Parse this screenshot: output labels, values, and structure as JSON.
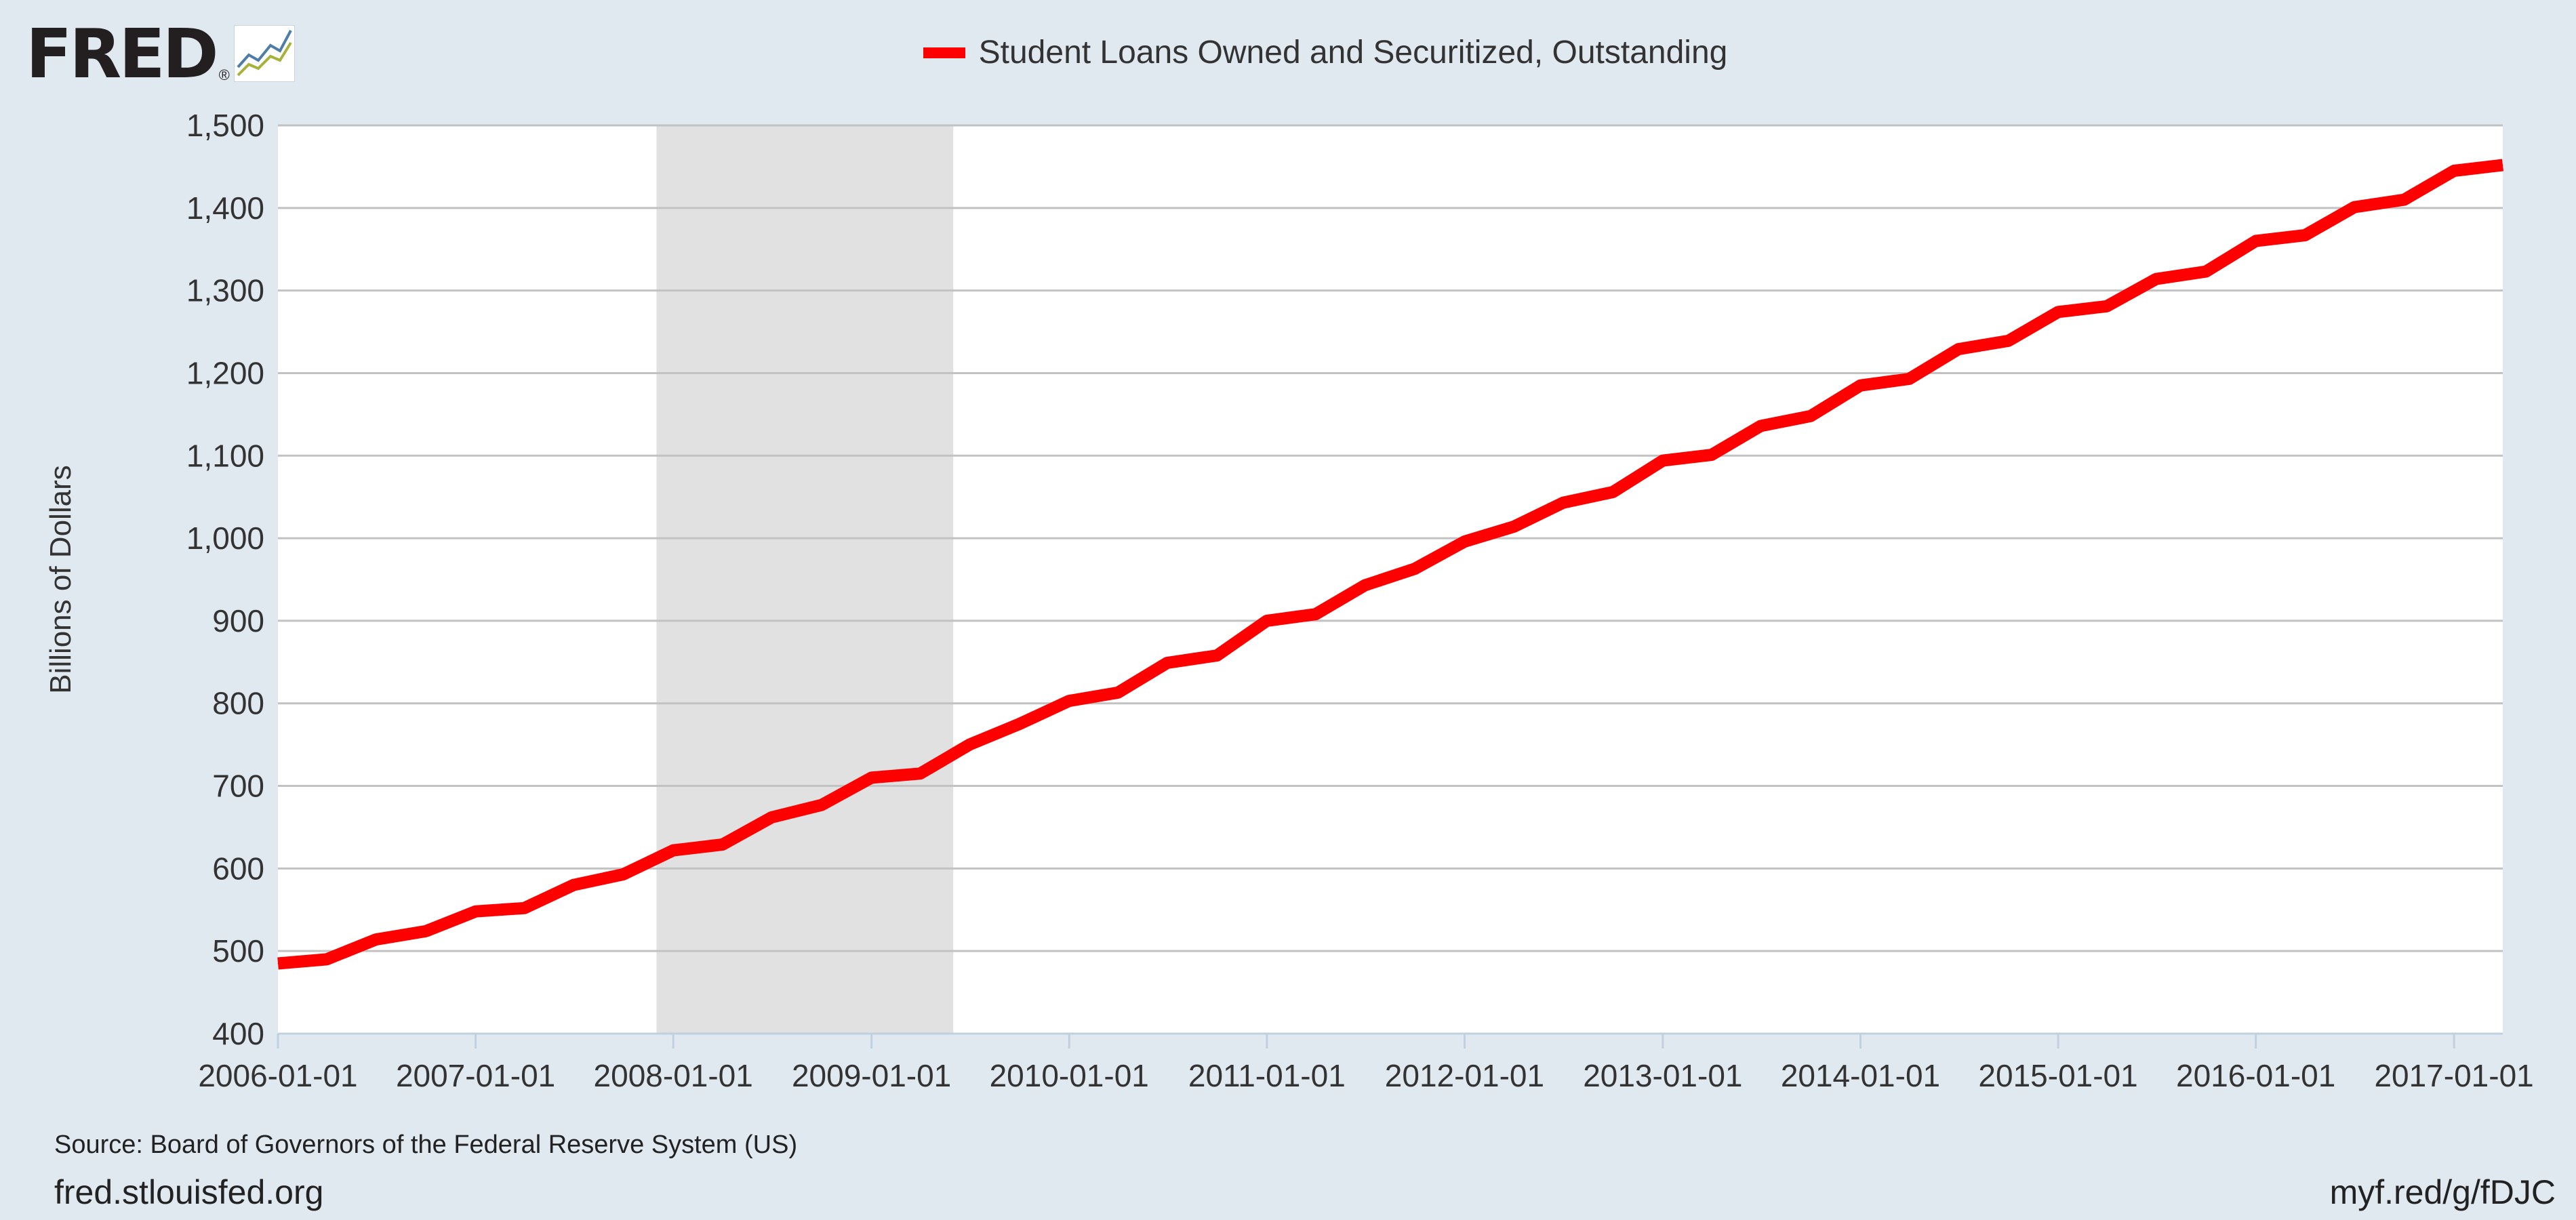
{
  "header": {
    "logo_text": "FRED",
    "logo_reg": "®",
    "legend_label": "Student Loans Owned and Securitized, Outstanding"
  },
  "footer": {
    "source": "Source: Board of Governors of the Federal Reserve System (US)",
    "site": "fred.stlouisfed.org",
    "shortlink": "myf.red/g/fDJC"
  },
  "colors": {
    "series": "#ff0000",
    "recession": "#e1e1e1",
    "background": "#e1e9f0",
    "plot": "#ffffff"
  },
  "chart_data": {
    "type": "line",
    "xlabel": "",
    "ylabel": "Billions of Dollars",
    "ylim": [
      400,
      1500
    ],
    "yticks": [
      400,
      500,
      600,
      700,
      800,
      900,
      1000,
      1100,
      1200,
      1300,
      1400,
      1500
    ],
    "ytick_labels": [
      "400",
      "500",
      "600",
      "700",
      "800",
      "900",
      "1,000",
      "1,100",
      "1,200",
      "1,300",
      "1,400",
      "1,500"
    ],
    "xlim": [
      "2006-01-01",
      "2017-04-01"
    ],
    "xticks": [
      "2006-01-01",
      "2007-01-01",
      "2008-01-01",
      "2009-01-01",
      "2010-01-01",
      "2011-01-01",
      "2012-01-01",
      "2013-01-01",
      "2014-01-01",
      "2015-01-01",
      "2016-01-01",
      "2017-01-01"
    ],
    "grid": true,
    "legend_position": "top-center",
    "recession": {
      "start": "2007-12-01",
      "end": "2009-06-01"
    },
    "series": [
      {
        "name": "Student Loans Owned and Securitized, Outstanding",
        "color": "#ff0000",
        "x": [
          "2006-01-01",
          "2006-04-01",
          "2006-07-01",
          "2006-10-01",
          "2007-01-01",
          "2007-04-01",
          "2007-07-01",
          "2007-10-01",
          "2008-01-01",
          "2008-04-01",
          "2008-07-01",
          "2008-10-01",
          "2009-01-01",
          "2009-04-01",
          "2009-07-01",
          "2009-10-01",
          "2010-01-01",
          "2010-04-01",
          "2010-07-01",
          "2010-10-01",
          "2011-01-01",
          "2011-04-01",
          "2011-07-01",
          "2011-10-01",
          "2012-01-01",
          "2012-04-01",
          "2012-07-01",
          "2012-10-01",
          "2013-01-01",
          "2013-04-01",
          "2013-07-01",
          "2013-10-01",
          "2014-01-01",
          "2014-04-01",
          "2014-07-01",
          "2014-10-01",
          "2015-01-01",
          "2015-04-01",
          "2015-07-01",
          "2015-10-01",
          "2016-01-01",
          "2016-04-01",
          "2016-07-01",
          "2016-10-01",
          "2017-01-01",
          "2017-04-01"
        ],
        "values": [
          485,
          490,
          514,
          524,
          548,
          552,
          580,
          593,
          622,
          629,
          662,
          677,
          710,
          715,
          750,
          775,
          803,
          813,
          849,
          858,
          900,
          908,
          943,
          963,
          996,
          1014,
          1043,
          1056,
          1094,
          1101,
          1136,
          1148,
          1185,
          1193,
          1229,
          1239,
          1274,
          1281,
          1314,
          1323,
          1360,
          1367,
          1401,
          1410,
          1445,
          1452
        ]
      }
    ]
  }
}
